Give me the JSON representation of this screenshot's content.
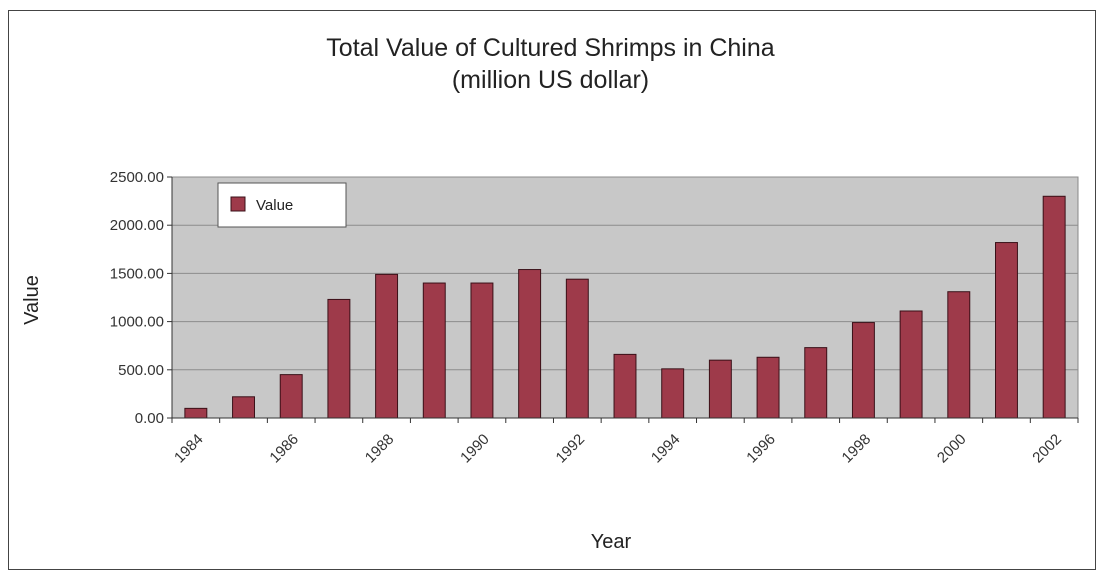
{
  "chart_data": {
    "type": "bar",
    "title_line1": "Total Value of Cultured Shrimps in China",
    "title_line2": "(million US dollar)",
    "xlabel": "Year",
    "ylabel": "Value",
    "ylim": [
      0,
      2500
    ],
    "yticks": [
      "0.00",
      "500.00",
      "1000.00",
      "1500.00",
      "2000.00",
      "2500.00"
    ],
    "ytick_values": [
      0,
      500,
      1000,
      1500,
      2000,
      2500
    ],
    "categories": [
      "1984",
      "1985",
      "1986",
      "1987",
      "1988",
      "1989",
      "1990",
      "1991",
      "1992",
      "1993",
      "1994",
      "1995",
      "1996",
      "1997",
      "1998",
      "1999",
      "2000",
      "2001",
      "2002"
    ],
    "xtick_labels": [
      "1984",
      "1986",
      "1988",
      "1990",
      "1992",
      "1994",
      "1996",
      "1998",
      "2000",
      "2002"
    ],
    "series": [
      {
        "name": "Value",
        "color": "#9e3a4a",
        "values": [
          100,
          220,
          450,
          1230,
          1490,
          1400,
          1400,
          1540,
          1440,
          660,
          510,
          600,
          630,
          730,
          990,
          1110,
          1310,
          1820,
          2300
        ]
      }
    ],
    "legend": {
      "label": "Value",
      "position": "top-left"
    },
    "plot_background": "#c8c8c8",
    "grid": true
  }
}
